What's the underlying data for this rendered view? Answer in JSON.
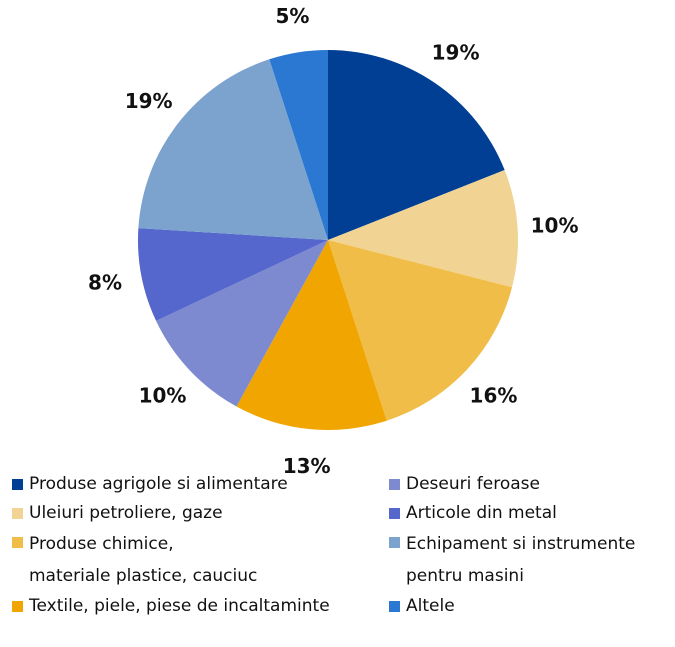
{
  "chart_data": {
    "type": "pie",
    "slices": [
      {
        "label": "Produse agrigole si alimentare",
        "value": 19,
        "value_label": "19%",
        "color": "#003F93"
      },
      {
        "label": "Uleiuri petroliere, gaze",
        "value": 10,
        "value_label": "10%",
        "color": "#F1D493"
      },
      {
        "label": "Produse chimice,\nmateriale plastice, cauciuc",
        "value": 16,
        "value_label": "16%",
        "color": "#F0BD48"
      },
      {
        "label": "Textile, piele, piese de incaltaminte",
        "value": 13,
        "value_label": "13%",
        "color": "#F0A500"
      },
      {
        "label": "Deseuri feroase",
        "value": 10,
        "value_label": "10%",
        "color": "#7D8ACF"
      },
      {
        "label": "Articole din metal",
        "value": 8,
        "value_label": "8%",
        "color": "#5566CC"
      },
      {
        "label": "Echipament si instrumente\npentru masini",
        "value": 19,
        "value_label": "19%",
        "color": "#7BA3CE"
      },
      {
        "label": "Altele",
        "value": 5,
        "value_label": "5%",
        "color": "#2B78D2"
      }
    ],
    "legend_position": "bottom"
  }
}
